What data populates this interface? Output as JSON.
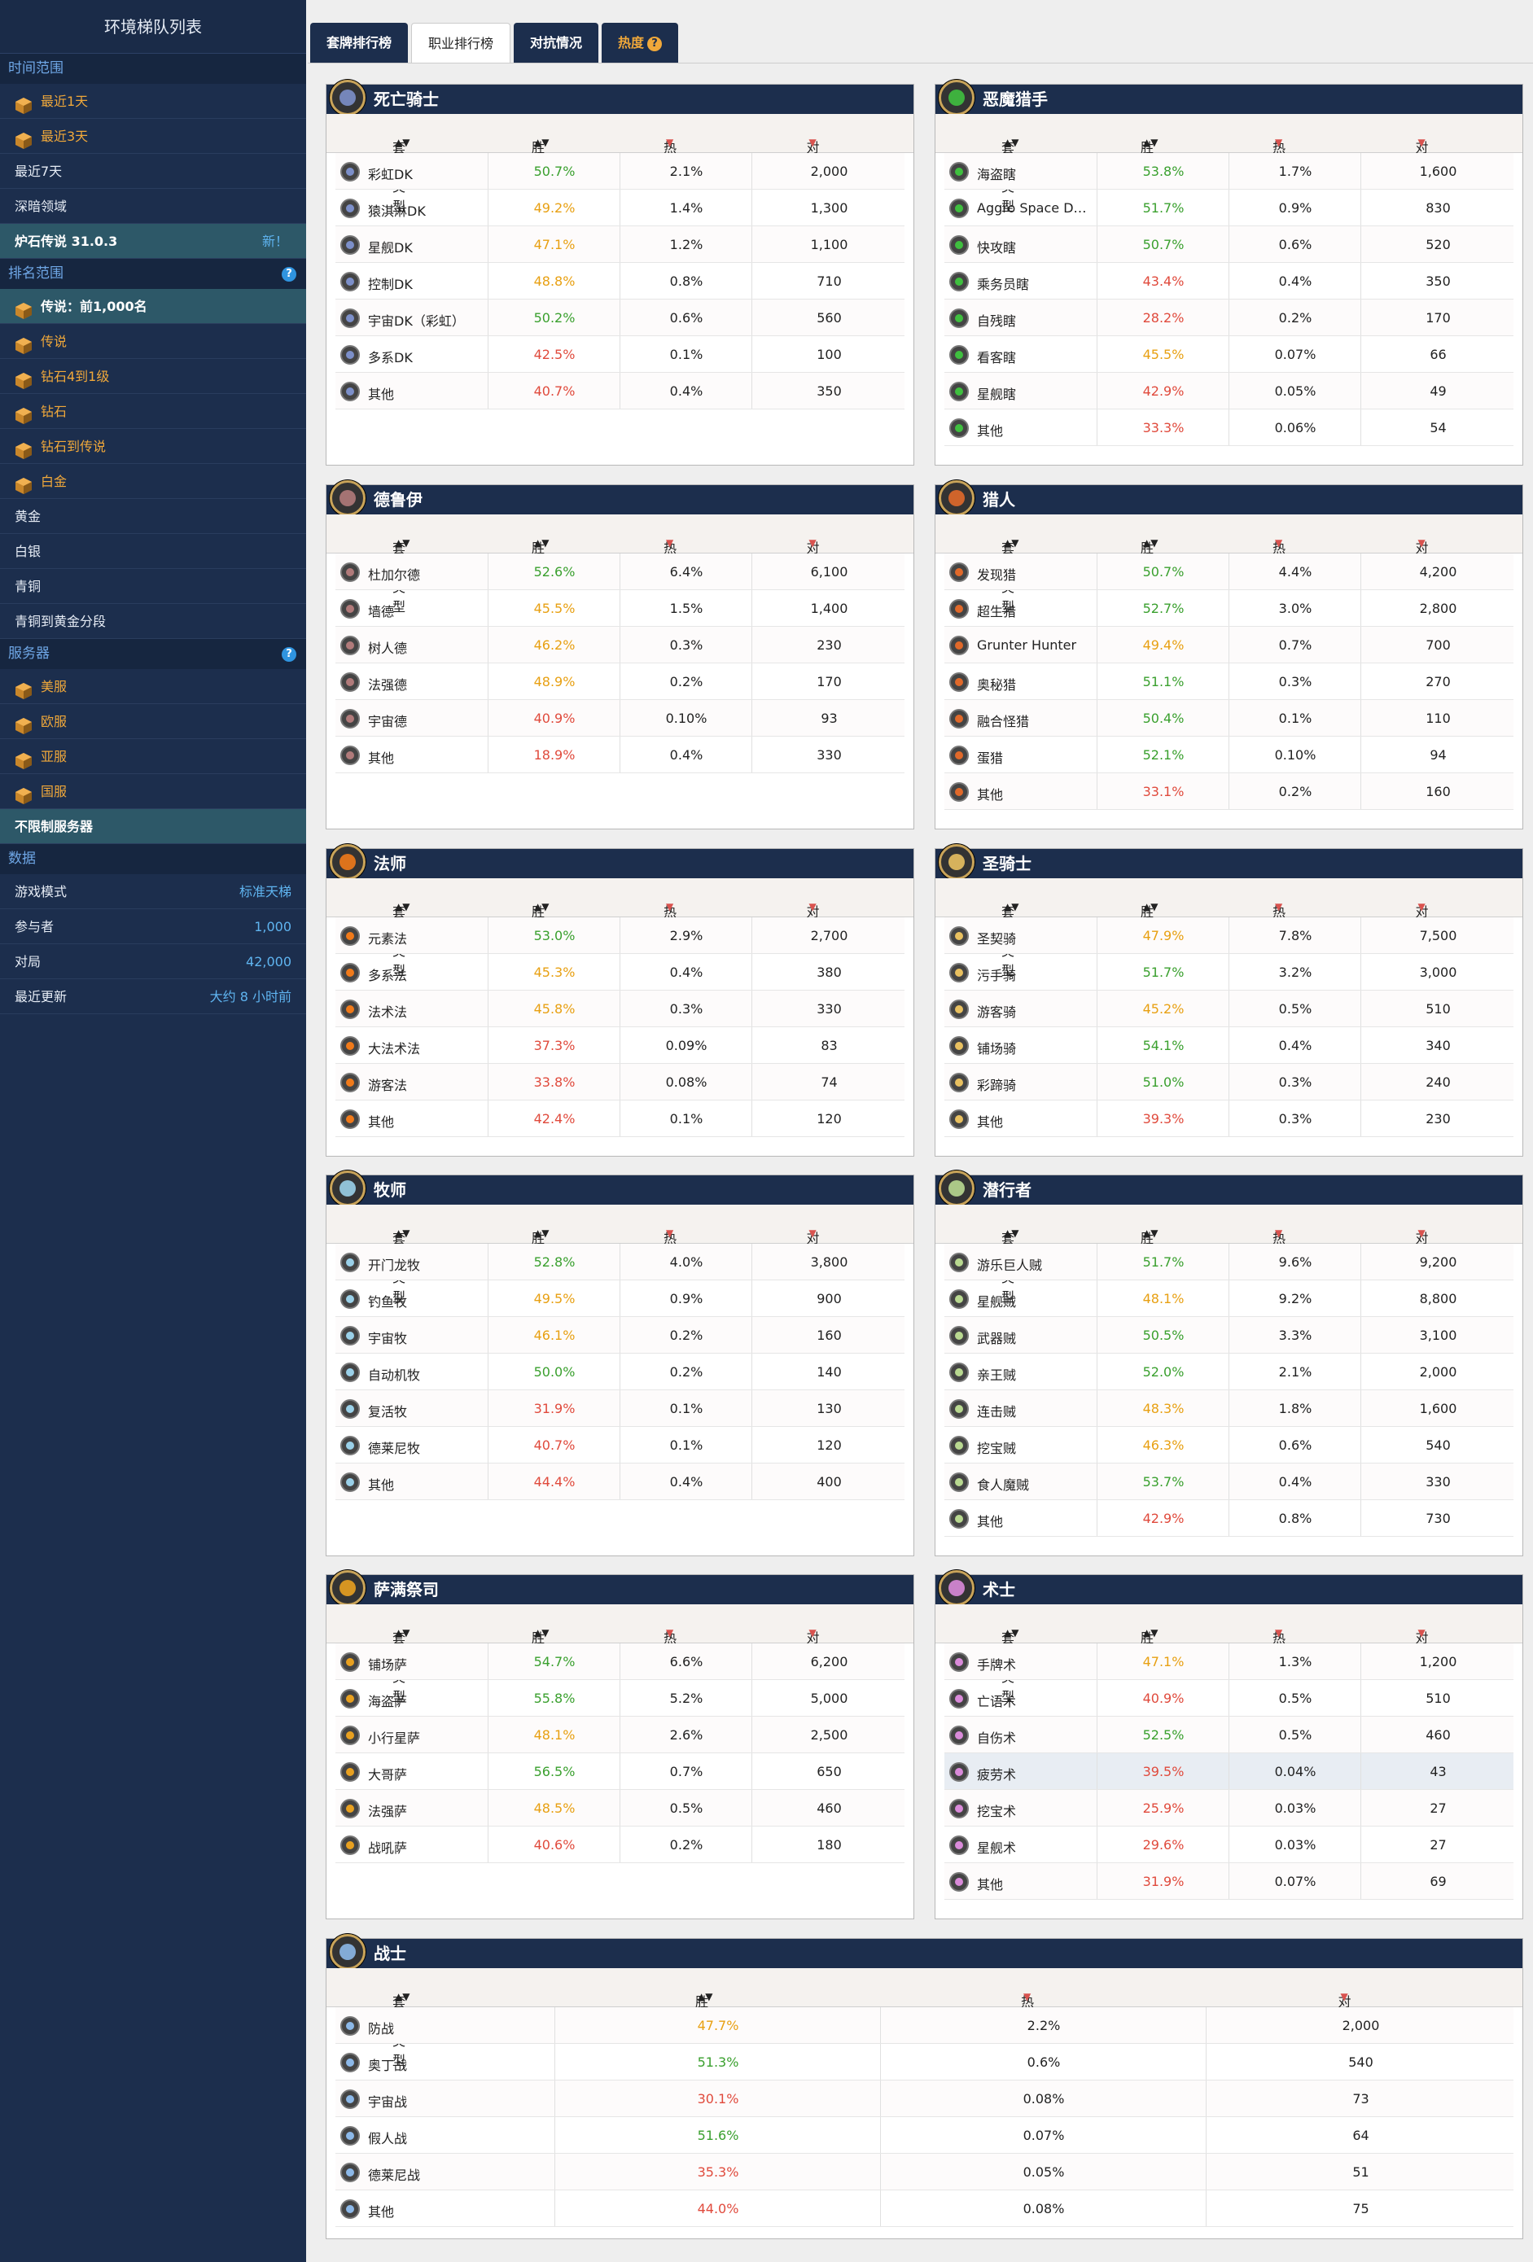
{
  "sidebar": {
    "title": "环境梯队列表",
    "time_head": "时间范围",
    "time_items": [
      "最近1天",
      "最近3天",
      "最近7天",
      "深暗领域"
    ],
    "patch_label": "炉石传说 31.0.3",
    "patch_new": "新！",
    "rank_head": "排名范围",
    "rank_items": [
      "传说：前1,000名",
      "传说",
      "钻石4到1级",
      "钻石",
      "钻石到传说",
      "白金",
      "黄金",
      "白银",
      "青铜",
      "青铜到黄金分段"
    ],
    "server_head": "服务器",
    "server_items": [
      "美服",
      "欧服",
      "亚服",
      "国服",
      "不限制服务器"
    ],
    "data_head": "数据",
    "stats": [
      {
        "label": "游戏模式",
        "value": "标准天梯"
      },
      {
        "label": "参与者",
        "value": "1,000"
      },
      {
        "label": "对局",
        "value": "42,000"
      },
      {
        "label": "最近更新",
        "value": "大约 8 小时前"
      }
    ]
  },
  "tabs": [
    "套牌排行榜",
    "职业排行榜",
    "对抗情况",
    "热度"
  ],
  "columns": {
    "deck": "套牌类型",
    "winrate": "胜率",
    "popularity": "热度",
    "games": "对局"
  },
  "colors": {
    "win_good": "#3aa02e",
    "win_mid": "#e8a012",
    "win_bad": "#e04a3c",
    "navy": "#1c2e4d"
  },
  "classes": [
    {
      "name": "死亡骑士",
      "icon": "death-knight-icon",
      "color": "#7c8fc9",
      "rows": [
        [
          "彩虹DK",
          "50.7%",
          "2.1%",
          "2,000"
        ],
        [
          "猿淇淋DK",
          "49.2%",
          "1.4%",
          "1,300"
        ],
        [
          "星舰DK",
          "47.1%",
          "1.2%",
          "1,100"
        ],
        [
          "控制DK",
          "48.8%",
          "0.8%",
          "710"
        ],
        [
          "宇宙DK（彩虹）",
          "50.2%",
          "0.6%",
          "560"
        ],
        [
          "多系DK",
          "42.5%",
          "0.1%",
          "100"
        ],
        [
          "其他",
          "40.7%",
          "0.4%",
          "350"
        ]
      ]
    },
    {
      "name": "恶魔猎手",
      "icon": "demon-hunter-icon",
      "color": "#3fbf3f",
      "rows": [
        [
          "海盗瞎",
          "53.8%",
          "1.7%",
          "1,600"
        ],
        [
          "Aggro Space Demo...",
          "51.7%",
          "0.9%",
          "830"
        ],
        [
          "快攻瞎",
          "50.7%",
          "0.6%",
          "520"
        ],
        [
          "乘务员瞎",
          "43.4%",
          "0.4%",
          "350"
        ],
        [
          "自残瞎",
          "28.2%",
          "0.2%",
          "170"
        ],
        [
          "看客瞎",
          "45.5%",
          "0.07%",
          "66"
        ],
        [
          "星舰瞎",
          "42.9%",
          "0.05%",
          "49"
        ],
        [
          "其他",
          "33.3%",
          "0.06%",
          "54"
        ]
      ]
    },
    {
      "name": "德鲁伊",
      "icon": "druid-icon",
      "color": "#b07a7a",
      "rows": [
        [
          "杜加尔德",
          "52.6%",
          "6.4%",
          "6,100"
        ],
        [
          "墙德",
          "45.5%",
          "1.5%",
          "1,400"
        ],
        [
          "树人德",
          "46.2%",
          "0.3%",
          "230"
        ],
        [
          "法强德",
          "48.9%",
          "0.2%",
          "170"
        ],
        [
          "宇宙德",
          "40.9%",
          "0.10%",
          "93"
        ],
        [
          "其他",
          "18.9%",
          "0.4%",
          "330"
        ]
      ]
    },
    {
      "name": "猎人",
      "icon": "hunter-icon",
      "color": "#e0692a",
      "rows": [
        [
          "发现猎",
          "50.7%",
          "4.4%",
          "4,200"
        ],
        [
          "超生猎",
          "52.7%",
          "3.0%",
          "2,800"
        ],
        [
          "Grunter Hunter",
          "49.4%",
          "0.7%",
          "700"
        ],
        [
          "奥秘猎",
          "51.1%",
          "0.3%",
          "270"
        ],
        [
          "融合怪猎",
          "50.4%",
          "0.1%",
          "110"
        ],
        [
          "蛋猎",
          "52.1%",
          "0.10%",
          "94"
        ],
        [
          "其他",
          "33.1%",
          "0.2%",
          "160"
        ]
      ]
    },
    {
      "name": "法师",
      "icon": "mage-icon",
      "color": "#f07a1a",
      "rows": [
        [
          "元素法",
          "53.0%",
          "2.9%",
          "2,700"
        ],
        [
          "多系法",
          "45.3%",
          "0.4%",
          "380"
        ],
        [
          "法术法",
          "45.8%",
          "0.3%",
          "330"
        ],
        [
          "大法术法",
          "37.3%",
          "0.09%",
          "83"
        ],
        [
          "游客法",
          "33.8%",
          "0.08%",
          "74"
        ],
        [
          "其他",
          "42.4%",
          "0.1%",
          "120"
        ]
      ]
    },
    {
      "name": "圣骑士",
      "icon": "paladin-icon",
      "color": "#e8c060",
      "rows": [
        [
          "圣契骑",
          "47.9%",
          "7.8%",
          "7,500"
        ],
        [
          "污手骑",
          "51.7%",
          "3.2%",
          "3,000"
        ],
        [
          "游客骑",
          "45.2%",
          "0.5%",
          "510"
        ],
        [
          "铺场骑",
          "54.1%",
          "0.4%",
          "340"
        ],
        [
          "彩蹄骑",
          "51.0%",
          "0.3%",
          "240"
        ],
        [
          "其他",
          "39.3%",
          "0.3%",
          "230"
        ]
      ]
    },
    {
      "name": "牧师",
      "icon": "priest-icon",
      "color": "#9ad0e8",
      "rows": [
        [
          "开门龙牧",
          "52.8%",
          "4.0%",
          "3,800"
        ],
        [
          "钓鱼牧",
          "49.5%",
          "0.9%",
          "900"
        ],
        [
          "宇宙牧",
          "46.1%",
          "0.2%",
          "160"
        ],
        [
          "自动机牧",
          "50.0%",
          "0.2%",
          "140"
        ],
        [
          "复活牧",
          "31.9%",
          "0.1%",
          "130"
        ],
        [
          "德莱尼牧",
          "40.7%",
          "0.1%",
          "120"
        ],
        [
          "其他",
          "44.4%",
          "0.4%",
          "400"
        ]
      ]
    },
    {
      "name": "潜行者",
      "icon": "rogue-icon",
      "color": "#b8d890",
      "rows": [
        [
          "游乐巨人贼",
          "51.7%",
          "9.6%",
          "9,200"
        ],
        [
          "星舰贼",
          "48.1%",
          "9.2%",
          "8,800"
        ],
        [
          "武器贼",
          "50.5%",
          "3.3%",
          "3,100"
        ],
        [
          "亲王贼",
          "52.0%",
          "2.1%",
          "2,000"
        ],
        [
          "连击贼",
          "48.3%",
          "1.8%",
          "1,600"
        ],
        [
          "挖宝贼",
          "46.3%",
          "0.6%",
          "540"
        ],
        [
          "食人魔贼",
          "53.7%",
          "0.4%",
          "330"
        ],
        [
          "其他",
          "42.9%",
          "0.8%",
          "730"
        ]
      ]
    },
    {
      "name": "萨满祭司",
      "icon": "shaman-icon",
      "color": "#e8a020",
      "rows": [
        [
          "铺场萨",
          "54.7%",
          "6.6%",
          "6,200"
        ],
        [
          "海盗萨",
          "55.8%",
          "5.2%",
          "5,000"
        ],
        [
          "小行星萨",
          "48.1%",
          "2.6%",
          "2,500"
        ],
        [
          "大哥萨",
          "56.5%",
          "0.7%",
          "650"
        ],
        [
          "法强萨",
          "48.5%",
          "0.5%",
          "460"
        ],
        [
          "战吼萨",
          "40.6%",
          "0.2%",
          "180"
        ]
      ]
    },
    {
      "name": "术士",
      "icon": "warlock-icon",
      "color": "#d98ad9",
      "rows": [
        [
          "手牌术",
          "47.1%",
          "1.3%",
          "1,200"
        ],
        [
          "亡语术",
          "40.9%",
          "0.5%",
          "510"
        ],
        [
          "自伤术",
          "52.5%",
          "0.5%",
          "460"
        ],
        [
          "疲劳术",
          "39.5%",
          "0.04%",
          "43"
        ],
        [
          "挖宝术",
          "25.9%",
          "0.03%",
          "27"
        ],
        [
          "星舰术",
          "29.6%",
          "0.03%",
          "27"
        ],
        [
          "其他",
          "31.9%",
          "0.07%",
          "69"
        ]
      ]
    },
    {
      "name": "战士",
      "icon": "warrior-icon",
      "color": "#8cb8e8",
      "rows": [
        [
          "防战",
          "47.7%",
          "2.2%",
          "2,000"
        ],
        [
          "奥丁战",
          "51.3%",
          "0.6%",
          "540"
        ],
        [
          "宇宙战",
          "30.1%",
          "0.08%",
          "73"
        ],
        [
          "假人战",
          "51.6%",
          "0.07%",
          "64"
        ],
        [
          "德莱尼战",
          "35.3%",
          "0.05%",
          "51"
        ],
        [
          "其他",
          "44.0%",
          "0.08%",
          "75"
        ]
      ]
    }
  ]
}
